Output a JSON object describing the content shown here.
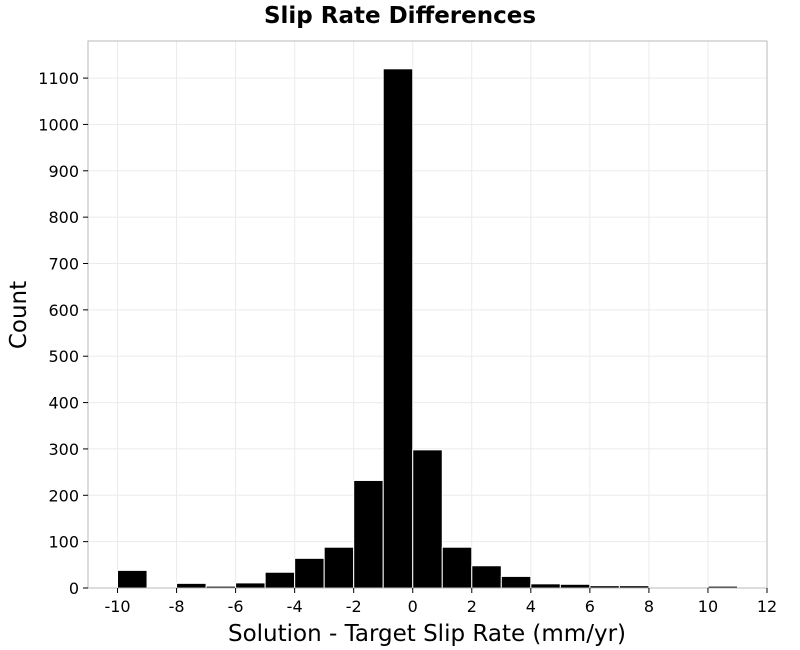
{
  "chart_data": {
    "type": "bar",
    "title": "Slip Rate Differences",
    "xlabel": "Solution - Target Slip Rate (mm/yr)",
    "ylabel": "Count",
    "xlim": [
      -11,
      12
    ],
    "ylim": [
      0,
      1180
    ],
    "xticks": [
      -10,
      -8,
      -6,
      -4,
      -2,
      0,
      2,
      4,
      6,
      8,
      10,
      12
    ],
    "yticks": [
      0,
      100,
      200,
      300,
      400,
      500,
      600,
      700,
      800,
      900,
      1000,
      1100
    ],
    "grid": true,
    "bin_width": 1,
    "bins": [
      {
        "center": -9.5,
        "value": 38
      },
      {
        "center": -8.5,
        "value": 2
      },
      {
        "center": -7.5,
        "value": 10
      },
      {
        "center": -6.5,
        "value": 4
      },
      {
        "center": -5.5,
        "value": 11
      },
      {
        "center": -4.5,
        "value": 34
      },
      {
        "center": -3.5,
        "value": 64
      },
      {
        "center": -2.5,
        "value": 88
      },
      {
        "center": -1.5,
        "value": 232
      },
      {
        "center": -0.5,
        "value": 1120
      },
      {
        "center": 0.5,
        "value": 298
      },
      {
        "center": 1.5,
        "value": 88
      },
      {
        "center": 2.5,
        "value": 48
      },
      {
        "center": 3.5,
        "value": 25
      },
      {
        "center": 4.5,
        "value": 9
      },
      {
        "center": 5.5,
        "value": 8
      },
      {
        "center": 6.5,
        "value": 5
      },
      {
        "center": 7.5,
        "value": 5
      },
      {
        "center": 8.5,
        "value": 0
      },
      {
        "center": 9.5,
        "value": 2
      },
      {
        "center": 10.5,
        "value": 4
      }
    ],
    "bar_color": "#000000"
  }
}
